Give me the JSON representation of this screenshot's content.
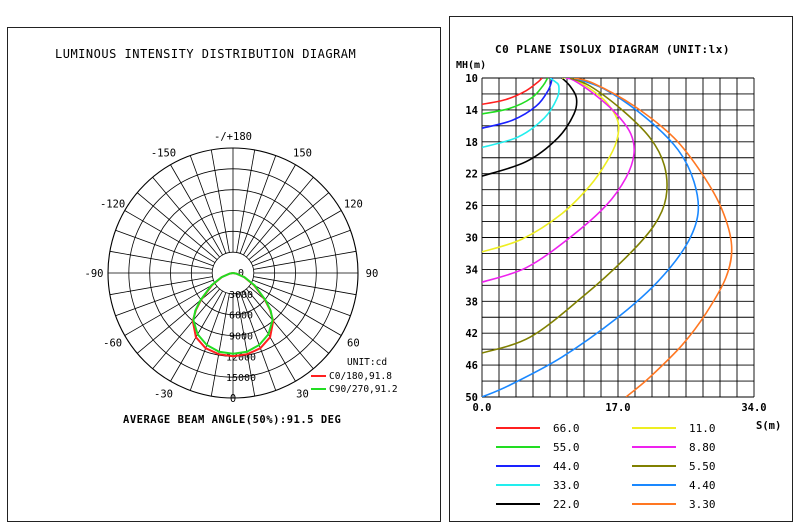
{
  "chart_data": [
    {
      "type": "polar",
      "title": "LUMINOUS INTENSITY DISTRIBUTION DIAGRAM",
      "angle_labels": [
        {
          "angle": 180,
          "label": "-/+180"
        },
        {
          "angle": -150,
          "label": "-150"
        },
        {
          "angle": 150,
          "label": "150"
        },
        {
          "angle": -120,
          "label": "-120"
        },
        {
          "angle": 120,
          "label": "120"
        },
        {
          "angle": -90,
          "label": "-90"
        },
        {
          "angle": 90,
          "label": "90"
        },
        {
          "angle": -60,
          "label": "-60"
        },
        {
          "angle": 60,
          "label": "60"
        },
        {
          "angle": -30,
          "label": "-30"
        },
        {
          "angle": 30,
          "label": "30"
        },
        {
          "angle": 0,
          "label": "0"
        }
      ],
      "radial_labels": [
        "0",
        "3000",
        "6000",
        "9000",
        "12000",
        "15000"
      ],
      "rmax": 15000,
      "unit_label": "UNIT:cd",
      "series": [
        {
          "name": "C0/180,91.8",
          "color": "#ff2020",
          "angles": [
            -90,
            -80,
            -70,
            -60,
            -50,
            -45,
            -40,
            -30,
            -20,
            -10,
            0,
            10,
            20,
            30,
            40,
            45,
            50,
            60,
            70,
            80,
            90
          ],
          "values": [
            0,
            400,
            1400,
            2900,
            5000,
            6300,
            7500,
            8900,
            9600,
            9900,
            10000,
            9900,
            9600,
            8900,
            7500,
            6300,
            5000,
            2900,
            1400,
            400,
            0
          ]
        },
        {
          "name": "C90/270,91.2",
          "color": "#22dd22",
          "angles": [
            -90,
            -80,
            -70,
            -60,
            -50,
            -45,
            -40,
            -30,
            -20,
            -10,
            0,
            10,
            20,
            30,
            40,
            45,
            50,
            60,
            70,
            80,
            90
          ],
          "values": [
            0,
            400,
            1500,
            3000,
            5100,
            6400,
            7400,
            8500,
            9200,
            9600,
            9700,
            9600,
            9200,
            8500,
            7400,
            6400,
            5100,
            3000,
            1500,
            400,
            0
          ]
        }
      ],
      "footer": "AVERAGE BEAM ANGLE(50%):91.5 DEG"
    },
    {
      "type": "line",
      "title": "C0 PLANE ISOLUX DIAGRAM (UNIT:lx)",
      "xlabel": "S(m)",
      "ylabel": "MH(m)",
      "x_ticks": [
        "0.0",
        "17.0",
        "34.0"
      ],
      "xlim": [
        0,
        34
      ],
      "y_ticks": [
        "10",
        "14",
        "18",
        "22",
        "26",
        "30",
        "34",
        "38",
        "42",
        "46",
        "50"
      ],
      "ylim": [
        10,
        50
      ],
      "series": [
        {
          "name": "66.0",
          "color": "#ff2020",
          "x": [
            0.0,
            3.0,
            5.5,
            7.0,
            7.5
          ],
          "y": [
            13.3,
            12.7,
            11.6,
            10.5,
            10.0
          ]
        },
        {
          "name": "55.0",
          "color": "#22dd22",
          "x": [
            0.0,
            3.5,
            6.2,
            7.6,
            8.2
          ],
          "y": [
            14.5,
            13.8,
            12.5,
            11.0,
            10.0
          ]
        },
        {
          "name": "44.0",
          "color": "#1a22ff",
          "x": [
            0.0,
            3.8,
            6.8,
            8.3,
            8.8
          ],
          "y": [
            16.3,
            15.3,
            13.5,
            11.5,
            10.0
          ]
        },
        {
          "name": "33.0",
          "color": "#22eeee",
          "x": [
            0.0,
            4.5,
            7.8,
            9.4,
            9.6,
            9.2,
            8.5
          ],
          "y": [
            18.7,
            17.4,
            15.0,
            12.5,
            11.0,
            10.5,
            10.0
          ]
        },
        {
          "name": "22.0",
          "color": "#000000",
          "x": [
            0.0,
            5.5,
            9.5,
            11.5,
            11.8,
            11.0,
            10.0
          ],
          "y": [
            22.3,
            20.5,
            17.5,
            14.5,
            12.5,
            11.0,
            10.0
          ]
        },
        {
          "name": "11.0",
          "color": "#eeee22",
          "x": [
            0.0,
            5.0,
            10.0,
            13.5,
            15.6,
            16.8,
            17.0,
            15.5,
            13.0,
            11.0,
            10.0
          ],
          "y": [
            31.8,
            30.2,
            27.0,
            23.5,
            20.5,
            18.0,
            15.5,
            13.0,
            11.0,
            10.0,
            10.0
          ]
        },
        {
          "name": "8.80",
          "color": "#ee22ee",
          "x": [
            0.0,
            5.5,
            11.0,
            15.5,
            18.0,
            19.0,
            18.6,
            16.8,
            14.0,
            11.5,
            10.5
          ],
          "y": [
            35.6,
            33.8,
            30.0,
            26.0,
            22.5,
            19.5,
            17.0,
            14.5,
            12.0,
            10.3,
            10.0
          ]
        },
        {
          "name": "5.50",
          "color": "#808000",
          "x": [
            0.0,
            6.0,
            12.5,
            18.0,
            21.5,
            23.0,
            22.8,
            21.0,
            17.5,
            13.5,
            11.0
          ],
          "y": [
            44.5,
            42.5,
            37.5,
            32.5,
            28.5,
            25.0,
            21.0,
            17.5,
            14.0,
            11.0,
            10.0
          ]
        },
        {
          "name": "4.40",
          "color": "#1a88ff",
          "x": [
            0.0,
            3.5,
            10.0,
            17.0,
            22.0,
            25.5,
            27.0,
            26.5,
            24.5,
            20.5,
            15.5,
            11.5
          ],
          "y": [
            50.0,
            48.5,
            45.0,
            40.0,
            35.5,
            31.0,
            27.0,
            23.0,
            19.0,
            15.0,
            11.5,
            10.0
          ]
        },
        {
          "name": "3.30",
          "color": "#ff7722",
          "x": [
            18.0,
            21.0,
            25.0,
            28.0,
            30.5,
            31.2,
            30.0,
            27.5,
            24.0,
            19.0,
            14.0,
            11.5
          ],
          "y": [
            50.0,
            47.5,
            43.5,
            39.5,
            35.0,
            31.0,
            26.5,
            22.0,
            17.5,
            13.5,
            10.7,
            10.0
          ]
        }
      ]
    }
  ]
}
